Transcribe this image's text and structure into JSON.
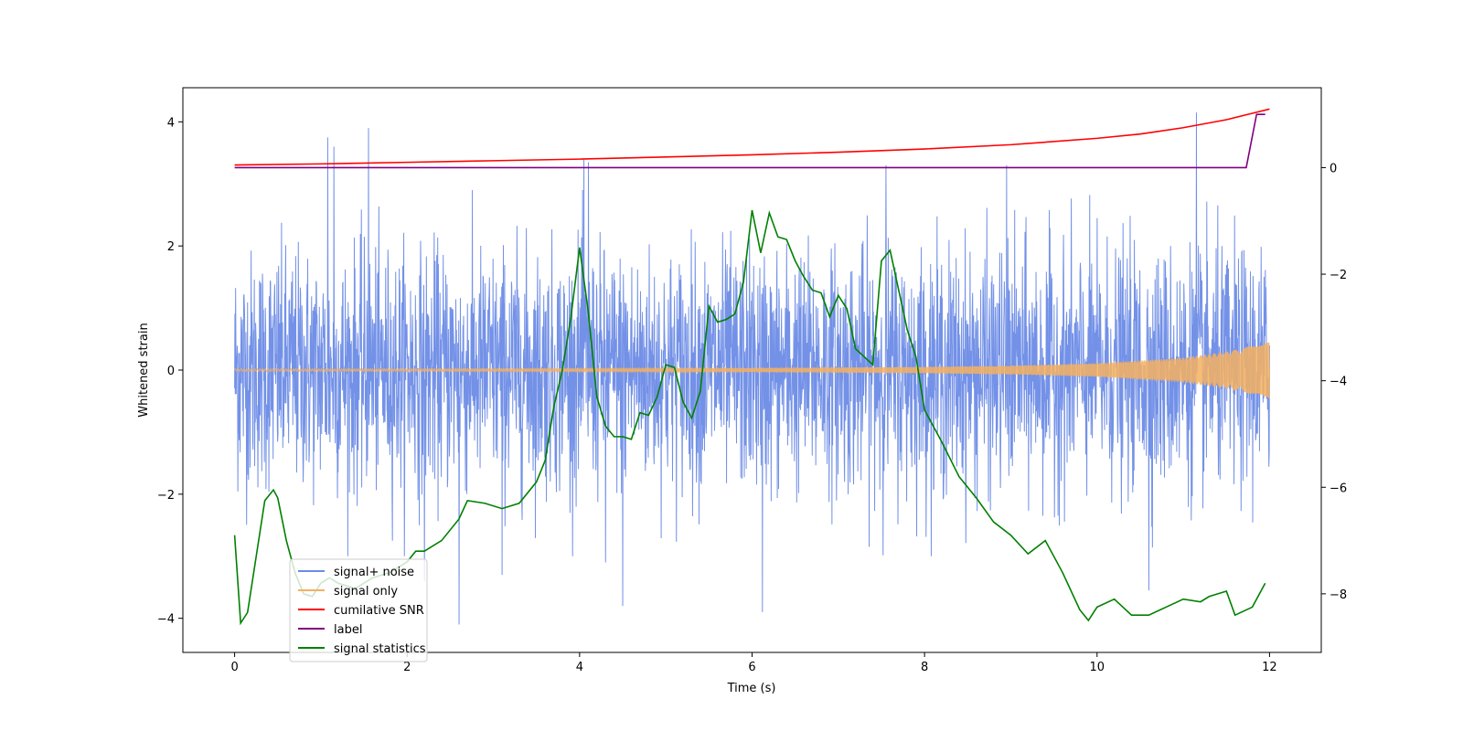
{
  "chart_data": {
    "type": "line",
    "title": "",
    "xlabel": "Time (s)",
    "ylabel": "Whitened strain",
    "y2label": "",
    "xlim": [
      -0.6,
      12.6
    ],
    "ylim": [
      -4.55,
      4.55
    ],
    "y2lim": [
      -9.1,
      1.5
    ],
    "xticks": [
      0,
      2,
      4,
      6,
      8,
      10,
      12
    ],
    "yticks": [
      -4,
      -2,
      0,
      2,
      4
    ],
    "y2ticks": [
      -8,
      -6,
      -4,
      -2,
      0
    ],
    "legend_position": "lower-left",
    "series": [
      {
        "name": "signal+ noise",
        "color": "#6b8be6",
        "axis": "left",
        "description": "whitened strain data, approx. gaussian noise with std ~1 over 0–12 s, occasional spikes up to ~4.2",
        "x_range": [
          0,
          12
        ],
        "approx_std": 1.0,
        "spikes": [
          {
            "x": 1.08,
            "y": 3.75
          },
          {
            "x": 1.15,
            "y": 3.6
          },
          {
            "x": 1.55,
            "y": 3.9
          },
          {
            "x": 4.05,
            "y": 3.4
          },
          {
            "x": 4.1,
            "y": 3.35
          },
          {
            "x": 7.55,
            "y": 3.3
          },
          {
            "x": 8.95,
            "y": 3.3
          },
          {
            "x": 11.15,
            "y": 4.15
          },
          {
            "x": 2.6,
            "y": -4.1
          },
          {
            "x": 4.5,
            "y": -3.8
          },
          {
            "x": 6.12,
            "y": -3.9
          },
          {
            "x": 10.6,
            "y": -3.55
          },
          {
            "x": 2.2,
            "y": -3.4
          },
          {
            "x": 3.1,
            "y": -3.3
          },
          {
            "x": 4.3,
            "y": -3.1
          }
        ]
      },
      {
        "name": "signal only",
        "color": "#f5b060",
        "axis": "left",
        "description": "chirp signal whose amplitude grows from ~0.02 to ~0.45 near 12 s",
        "envelope": [
          [
            0,
            0.02
          ],
          [
            2,
            0.02
          ],
          [
            4,
            0.025
          ],
          [
            6,
            0.03
          ],
          [
            8,
            0.05
          ],
          [
            9,
            0.07
          ],
          [
            10,
            0.11
          ],
          [
            11,
            0.2
          ],
          [
            11.5,
            0.3
          ],
          [
            12,
            0.45
          ]
        ]
      },
      {
        "name": "cumilative SNR",
        "color": "#ff0000",
        "axis": "right",
        "x": [
          0,
          1,
          2,
          3,
          4,
          5,
          6,
          7,
          8,
          9,
          10,
          10.5,
          11,
          11.5,
          11.8,
          12
        ],
        "values": [
          0.05,
          0.07,
          0.1,
          0.13,
          0.16,
          0.2,
          0.24,
          0.29,
          0.35,
          0.43,
          0.55,
          0.63,
          0.75,
          0.9,
          1.02,
          1.1
        ]
      },
      {
        "name": "label",
        "color": "#800080",
        "axis": "right",
        "x": [
          0,
          11.73,
          11.85,
          11.95
        ],
        "values": [
          0,
          0,
          1.0,
          1.0
        ]
      },
      {
        "name": "signal statistics",
        "color": "#008000",
        "axis": "right",
        "x": [
          0,
          0.07,
          0.15,
          0.25,
          0.35,
          0.45,
          0.5,
          0.6,
          0.7,
          0.8,
          0.9,
          1.0,
          1.1,
          1.2,
          1.4,
          1.6,
          1.8,
          2.0,
          2.1,
          2.2,
          2.4,
          2.6,
          2.7,
          2.9,
          3.1,
          3.3,
          3.5,
          3.6,
          3.7,
          3.8,
          3.9,
          4.0,
          4.1,
          4.2,
          4.3,
          4.4,
          4.5,
          4.6,
          4.7,
          4.8,
          4.9,
          5.0,
          5.1,
          5.2,
          5.3,
          5.4,
          5.5,
          5.6,
          5.7,
          5.8,
          5.9,
          6.0,
          6.1,
          6.2,
          6.3,
          6.4,
          6.5,
          6.6,
          6.7,
          6.8,
          6.9,
          7.0,
          7.1,
          7.2,
          7.3,
          7.4,
          7.5,
          7.6,
          7.7,
          7.8,
          7.9,
          8.0,
          8.2,
          8.4,
          8.6,
          8.8,
          9.0,
          9.2,
          9.4,
          9.6,
          9.8,
          9.9,
          10.0,
          10.2,
          10.4,
          10.6,
          10.8,
          11.0,
          11.2,
          11.3,
          11.4,
          11.5,
          11.6,
          11.8,
          11.95
        ],
        "values": [
          -6.9,
          -8.55,
          -8.35,
          -7.3,
          -6.25,
          -6.05,
          -6.2,
          -7.0,
          -7.6,
          -8.0,
          -8.05,
          -7.8,
          -7.7,
          -7.8,
          -7.9,
          -7.7,
          -7.6,
          -7.4,
          -7.2,
          -7.2,
          -7.0,
          -6.6,
          -6.25,
          -6.3,
          -6.4,
          -6.3,
          -5.9,
          -5.5,
          -4.5,
          -3.8,
          -2.8,
          -1.5,
          -2.7,
          -4.3,
          -4.85,
          -5.05,
          -5.05,
          -5.1,
          -4.6,
          -4.65,
          -4.3,
          -3.7,
          -3.75,
          -4.4,
          -4.7,
          -4.2,
          -2.6,
          -2.9,
          -2.85,
          -2.75,
          -2.15,
          -0.8,
          -1.6,
          -0.85,
          -1.3,
          -1.35,
          -1.75,
          -2.05,
          -2.3,
          -2.35,
          -2.8,
          -2.4,
          -2.65,
          -3.4,
          -3.55,
          -3.7,
          -1.75,
          -1.55,
          -2.3,
          -3.05,
          -3.55,
          -4.55,
          -5.15,
          -5.8,
          -6.2,
          -6.65,
          -6.9,
          -7.25,
          -7.0,
          -7.6,
          -8.3,
          -8.5,
          -8.25,
          -8.1,
          -8.4,
          -8.4,
          -8.25,
          -8.1,
          -8.15,
          -8.05,
          -8.0,
          -7.95,
          -8.4,
          -8.25,
          -7.8
        ]
      }
    ]
  }
}
